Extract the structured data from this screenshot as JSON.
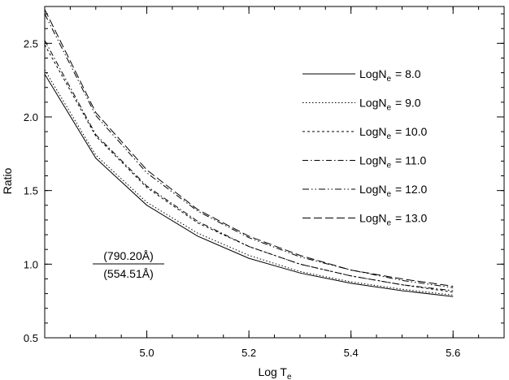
{
  "chart_data": {
    "type": "line",
    "xlabel": "Log T",
    "xlabel_sub": "e",
    "ylabel": "Ratio",
    "xlim": [
      4.8,
      5.7
    ],
    "ylim": [
      0.5,
      2.75
    ],
    "grid": false,
    "legend_position": "top-right",
    "xticks": [
      {
        "value": 5.0,
        "label": "5.0"
      },
      {
        "value": 5.2,
        "label": "5.2"
      },
      {
        "value": 5.4,
        "label": "5.4"
      },
      {
        "value": 5.6,
        "label": "5.6"
      }
    ],
    "yticks": [
      {
        "value": 0.5,
        "label": "0.5"
      },
      {
        "value": 1.0,
        "label": "1.0"
      },
      {
        "value": 1.5,
        "label": "1.5"
      },
      {
        "value": 2.0,
        "label": "2.0"
      },
      {
        "value": 2.5,
        "label": "2.5"
      }
    ],
    "annotation": {
      "numerator": "(790.20Å)",
      "denominator": "(554.51Å)"
    },
    "series": [
      {
        "name": "LogN",
        "sub": "e",
        "value_label": "= 8.0",
        "dash": "solid",
        "x": [
          4.8,
          4.9,
          5.0,
          5.1,
          5.2,
          5.3,
          5.4,
          5.5,
          5.6
        ],
        "y": [
          2.29,
          1.72,
          1.4,
          1.19,
          1.04,
          0.94,
          0.87,
          0.82,
          0.78
        ]
      },
      {
        "name": "LogN",
        "sub": "e",
        "value_label": "= 9.0",
        "dash": "dotted",
        "x": [
          4.8,
          4.9,
          5.0,
          5.1,
          5.2,
          5.3,
          5.4,
          5.5,
          5.6
        ],
        "y": [
          2.32,
          1.74,
          1.42,
          1.21,
          1.06,
          0.95,
          0.88,
          0.83,
          0.79
        ]
      },
      {
        "name": "LogN",
        "sub": "e",
        "value_label": "= 10.0",
        "dash": "dashed",
        "x": [
          4.8,
          4.9,
          5.0,
          5.1,
          5.2,
          5.3,
          5.4,
          5.5,
          5.6
        ],
        "y": [
          2.49,
          1.87,
          1.52,
          1.28,
          1.12,
          1.0,
          0.92,
          0.86,
          0.81
        ]
      },
      {
        "name": "LogN",
        "sub": "e",
        "value_label": "= 11.0",
        "dash": "dash-dot",
        "x": [
          4.8,
          4.9,
          5.0,
          5.1,
          5.2,
          5.3,
          5.4,
          5.5,
          5.6
        ],
        "y": [
          2.52,
          1.88,
          1.53,
          1.29,
          1.12,
          1.0,
          0.92,
          0.86,
          0.82
        ]
      },
      {
        "name": "LogN",
        "sub": "e",
        "value_label": "= 12.0",
        "dash": "dash-dot-dot",
        "x": [
          4.8,
          4.9,
          5.0,
          5.1,
          5.2,
          5.3,
          5.4,
          5.5,
          5.6
        ],
        "y": [
          2.7,
          2.01,
          1.62,
          1.36,
          1.18,
          1.05,
          0.96,
          0.89,
          0.84
        ]
      },
      {
        "name": "LogN",
        "sub": "e",
        "value_label": "= 13.0",
        "dash": "long-dash",
        "x": [
          4.8,
          4.9,
          5.0,
          5.1,
          5.2,
          5.3,
          5.4,
          5.5,
          5.6
        ],
        "y": [
          2.73,
          2.03,
          1.64,
          1.37,
          1.19,
          1.06,
          0.96,
          0.9,
          0.85
        ]
      }
    ]
  }
}
